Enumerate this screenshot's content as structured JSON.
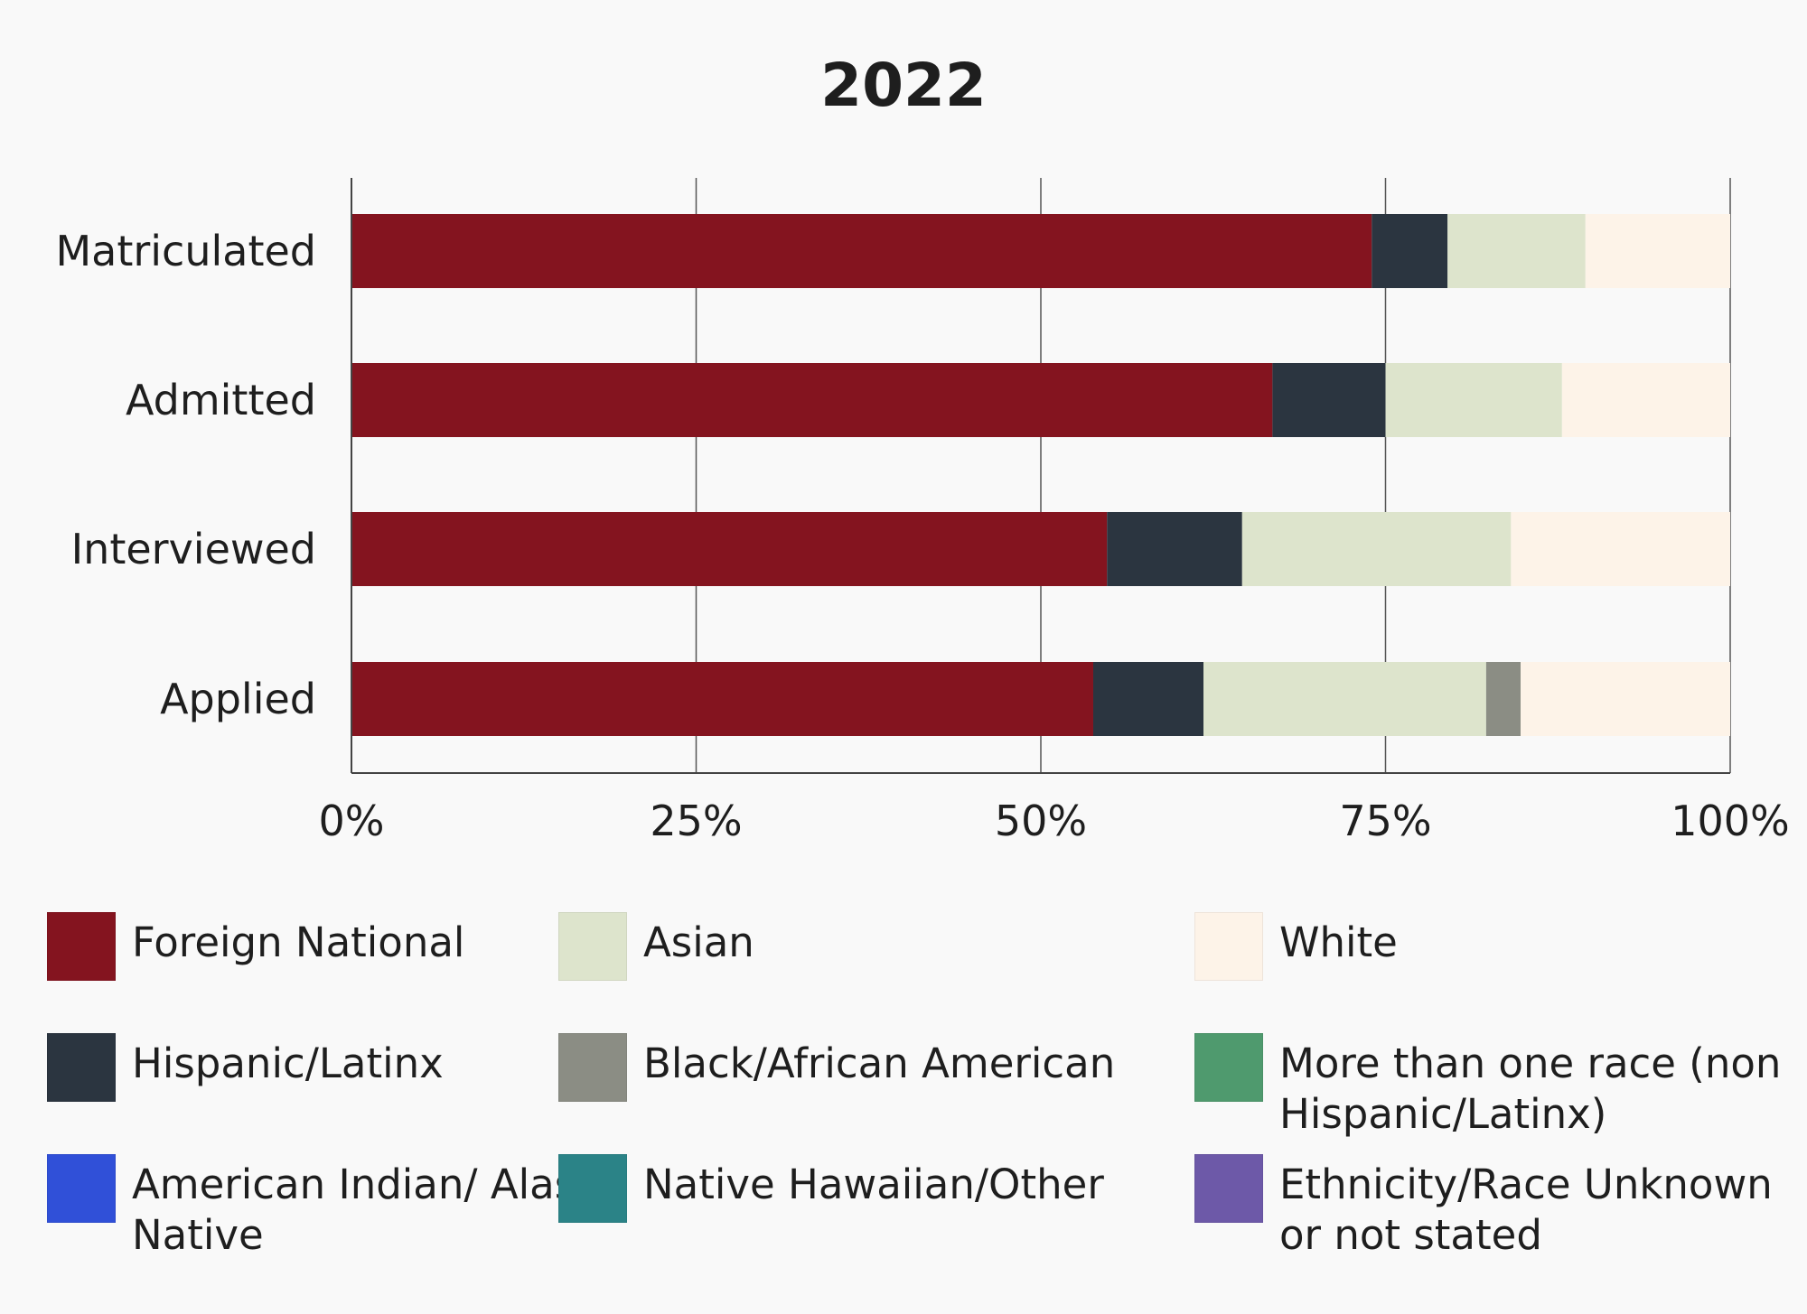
{
  "chart_data": {
    "type": "bar",
    "orientation": "horizontal",
    "stacked": true,
    "title": "2022",
    "xlabel": "",
    "ylabel": "",
    "xlim": [
      0,
      100
    ],
    "x_ticks": [
      "0%",
      "25%",
      "50%",
      "75%",
      "100%"
    ],
    "categories": [
      "Matriculated",
      "Admitted",
      "Interviewed",
      "Applied"
    ],
    "grid": true,
    "legend_position": "bottom",
    "series": [
      {
        "name": "Foreign National",
        "color": "#84141f",
        "values": [
          74,
          66.8,
          54.8,
          53.8
        ]
      },
      {
        "name": "Hispanic/Latinx",
        "color": "#2b3540",
        "values": [
          5.5,
          8.2,
          9.8,
          8.0
        ]
      },
      {
        "name": "Asian",
        "color": "#dde4cc",
        "values": [
          10,
          12.8,
          19.5,
          20.5
        ]
      },
      {
        "name": "Black/African American",
        "color": "#8b8d84",
        "values": [
          0,
          0,
          0,
          2.5
        ]
      },
      {
        "name": "White",
        "color": "#fdf3e8",
        "values": [
          10.5,
          12.2,
          15.9,
          15.2
        ]
      },
      {
        "name": "More than one race (non Hispanic/Latinx)",
        "color": "#4f9a6e",
        "values": [
          0,
          0,
          0,
          0
        ]
      },
      {
        "name": "American Indian/ Alaska Native",
        "color": "#3050d8",
        "values": [
          0,
          0,
          0,
          0
        ]
      },
      {
        "name": "Native Hawaiian/Other",
        "color": "#2b8387",
        "values": [
          0,
          0,
          0,
          0
        ]
      },
      {
        "name": "Ethnicity/Race Unknown or not stated",
        "color": "#6d59a8",
        "values": [
          0,
          0,
          0,
          0
        ]
      }
    ],
    "legend": [
      {
        "label": "Foreign National",
        "color": "#84141f"
      },
      {
        "label": "Asian",
        "color": "#dde4cc"
      },
      {
        "label": "White",
        "color": "#fdf3e8"
      },
      {
        "label": "Hispanic/Latinx",
        "color": "#2b3540"
      },
      {
        "label": "Black/African American",
        "color": "#8b8d84"
      },
      {
        "label": "More than one race (non Hispanic/Latinx)",
        "color": "#4f9a6e"
      },
      {
        "label": "American Indian/ Alaska Native",
        "color": "#3050d8"
      },
      {
        "label": "Native Hawaiian/Other",
        "color": "#2b8387"
      },
      {
        "label": "Ethnicity/Race Unknown or not stated",
        "color": "#6d59a8"
      }
    ]
  }
}
